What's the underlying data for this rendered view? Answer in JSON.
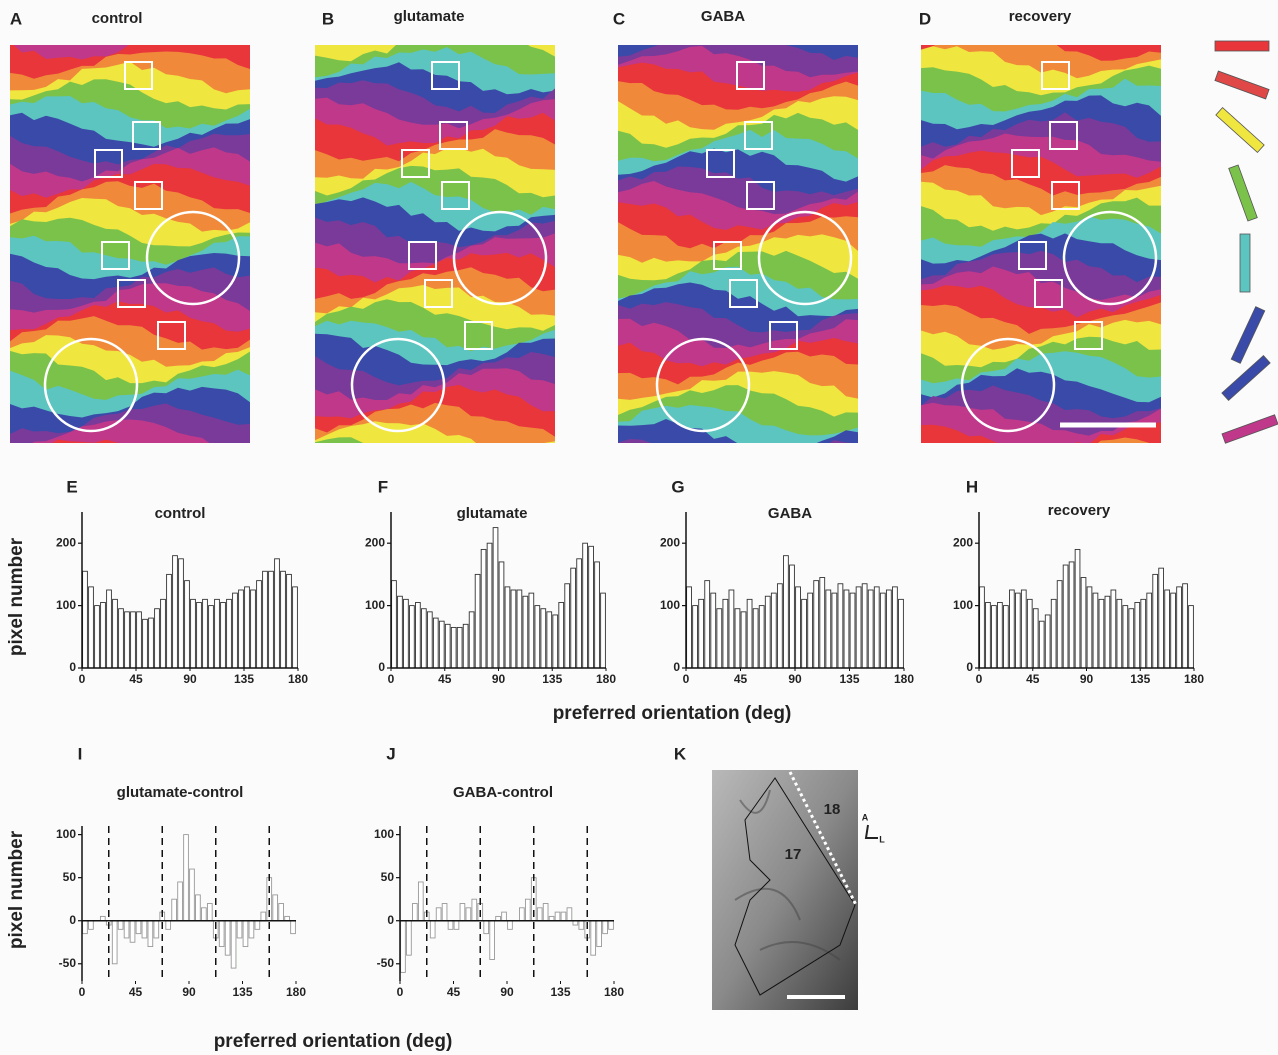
{
  "maps": [
    {
      "letter": "A",
      "title": "control"
    },
    {
      "letter": "B",
      "title": "glutamate"
    },
    {
      "letter": "C",
      "title": "GABA"
    },
    {
      "letter": "D",
      "title": "recovery"
    }
  ],
  "row_labels": [
    {
      "ylabel": "pixel number",
      "xlabel": "preferred orientation (deg)"
    },
    {
      "ylabel": "pixel number",
      "xlabel": "preferred orientation (deg)"
    }
  ],
  "panel_k": {
    "letter": "K",
    "area_18": "18",
    "area_17": "17",
    "anterior": "A",
    "lateral": "L"
  },
  "chart_data": [
    {
      "type": "histogram",
      "letter": "E",
      "title": "control",
      "color": "#ffffff",
      "edgecolor": "#333333",
      "bins": [
        0,
        5,
        10,
        15,
        20,
        25,
        30,
        35,
        40,
        45,
        50,
        55,
        60,
        65,
        70,
        75,
        80,
        85,
        90,
        95,
        100,
        105,
        110,
        115,
        120,
        125,
        130,
        135,
        140,
        145,
        150,
        155,
        160,
        165,
        170,
        175,
        180
      ],
      "values": [
        155,
        130,
        100,
        105,
        125,
        110,
        95,
        90,
        90,
        90,
        78,
        80,
        95,
        110,
        150,
        180,
        175,
        140,
        110,
        105,
        110,
        100,
        110,
        105,
        110,
        120,
        125,
        130,
        125,
        140,
        155,
        155,
        175,
        155,
        150,
        130
      ],
      "xlim": [
        0,
        180
      ],
      "xticks": [
        0,
        45,
        90,
        135,
        180
      ],
      "ylim": [
        0,
        250
      ],
      "yticks": [
        0,
        100,
        200
      ]
    },
    {
      "type": "histogram",
      "letter": "F",
      "title": "glutamate",
      "color": "#ffffff",
      "edgecolor": "#333333",
      "bins": [
        0,
        5,
        10,
        15,
        20,
        25,
        30,
        35,
        40,
        45,
        50,
        55,
        60,
        65,
        70,
        75,
        80,
        85,
        90,
        95,
        100,
        105,
        110,
        115,
        120,
        125,
        130,
        135,
        140,
        145,
        150,
        155,
        160,
        165,
        170,
        175,
        180
      ],
      "values": [
        140,
        115,
        110,
        100,
        105,
        95,
        90,
        80,
        75,
        70,
        65,
        65,
        70,
        90,
        150,
        190,
        200,
        225,
        170,
        130,
        125,
        125,
        115,
        120,
        100,
        95,
        90,
        85,
        105,
        135,
        160,
        175,
        200,
        195,
        170,
        120
      ],
      "xlim": [
        0,
        180
      ],
      "xticks": [
        0,
        45,
        90,
        135,
        180
      ],
      "ylim": [
        0,
        250
      ],
      "yticks": [
        0,
        100,
        200
      ]
    },
    {
      "type": "histogram",
      "letter": "G",
      "title": "GABA",
      "color": "#ffffff",
      "edgecolor": "#333333",
      "bins": [
        0,
        5,
        10,
        15,
        20,
        25,
        30,
        35,
        40,
        45,
        50,
        55,
        60,
        65,
        70,
        75,
        80,
        85,
        90,
        95,
        100,
        105,
        110,
        115,
        120,
        125,
        130,
        135,
        140,
        145,
        150,
        155,
        160,
        165,
        170,
        175,
        180
      ],
      "values": [
        130,
        100,
        110,
        140,
        120,
        95,
        110,
        125,
        95,
        90,
        110,
        95,
        100,
        115,
        120,
        135,
        180,
        165,
        130,
        110,
        120,
        140,
        145,
        125,
        120,
        135,
        125,
        120,
        130,
        135,
        125,
        130,
        120,
        125,
        130,
        110
      ],
      "xlim": [
        0,
        180
      ],
      "xticks": [
        0,
        45,
        90,
        135,
        180
      ],
      "ylim": [
        0,
        250
      ],
      "yticks": [
        0,
        100,
        200
      ]
    },
    {
      "type": "histogram",
      "letter": "H",
      "title": "recovery",
      "color": "#ffffff",
      "edgecolor": "#333333",
      "bins": [
        0,
        5,
        10,
        15,
        20,
        25,
        30,
        35,
        40,
        45,
        50,
        55,
        60,
        65,
        70,
        75,
        80,
        85,
        90,
        95,
        100,
        105,
        110,
        115,
        120,
        125,
        130,
        135,
        140,
        145,
        150,
        155,
        160,
        165,
        170,
        175,
        180
      ],
      "values": [
        130,
        105,
        100,
        105,
        100,
        125,
        120,
        125,
        110,
        95,
        75,
        85,
        110,
        140,
        165,
        170,
        190,
        145,
        130,
        120,
        110,
        115,
        125,
        110,
        100,
        95,
        105,
        110,
        120,
        150,
        160,
        125,
        120,
        130,
        135,
        100
      ],
      "xlim": [
        0,
        180
      ],
      "xticks": [
        0,
        45,
        90,
        135,
        180
      ],
      "ylim": [
        0,
        250
      ],
      "yticks": [
        0,
        100,
        200
      ]
    },
    {
      "type": "histogram",
      "letter": "I",
      "title": "glutamate-control",
      "color": "#ffffff",
      "edgecolor": "#999999",
      "bins": [
        0,
        5,
        10,
        15,
        20,
        25,
        30,
        35,
        40,
        45,
        50,
        55,
        60,
        65,
        70,
        75,
        80,
        85,
        90,
        95,
        100,
        105,
        110,
        115,
        120,
        125,
        130,
        135,
        140,
        145,
        150,
        155,
        160,
        165,
        170,
        175,
        180
      ],
      "values": [
        -15,
        -10,
        0,
        5,
        -5,
        -50,
        -10,
        -20,
        -25,
        -15,
        -20,
        -30,
        -20,
        10,
        -10,
        25,
        45,
        100,
        60,
        30,
        15,
        20,
        -20,
        -30,
        -40,
        -55,
        -20,
        -30,
        -20,
        -10,
        10,
        50,
        30,
        20,
        5,
        -15
      ],
      "xlim": [
        0,
        180
      ],
      "xticks": [
        0,
        45,
        90,
        135,
        180
      ],
      "ylim": [
        -70,
        110
      ],
      "yticks": [
        -50,
        0,
        50,
        100
      ],
      "vlines": [
        22.5,
        67.5,
        112.5,
        157.5
      ]
    },
    {
      "type": "histogram",
      "letter": "J",
      "title": "GABA-control",
      "color": "#ffffff",
      "edgecolor": "#999999",
      "bins": [
        0,
        5,
        10,
        15,
        20,
        25,
        30,
        35,
        40,
        45,
        50,
        55,
        60,
        65,
        70,
        75,
        80,
        85,
        90,
        95,
        100,
        105,
        110,
        115,
        120,
        125,
        130,
        135,
        140,
        145,
        150,
        155,
        160,
        165,
        170,
        175,
        180
      ],
      "values": [
        -60,
        -40,
        20,
        45,
        10,
        -20,
        15,
        20,
        -10,
        -10,
        20,
        15,
        25,
        20,
        -15,
        -45,
        5,
        10,
        -10,
        0,
        15,
        25,
        50,
        15,
        20,
        5,
        10,
        10,
        15,
        -5,
        -10,
        -20,
        -40,
        -30,
        -15,
        -10
      ],
      "xlim": [
        0,
        180
      ],
      "xticks": [
        0,
        45,
        90,
        135,
        180
      ],
      "ylim": [
        -70,
        110
      ],
      "yticks": [
        -50,
        0,
        50,
        100
      ],
      "vlines": [
        22.5,
        67.5,
        112.5,
        157.5
      ]
    }
  ]
}
